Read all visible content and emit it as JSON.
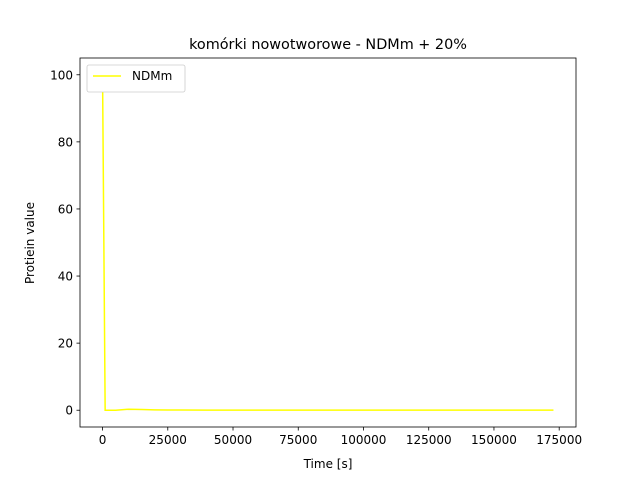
{
  "chart_data": {
    "type": "line",
    "title": "komórki nowotworowe - NDMm + 20%",
    "xlabel": "Time [s]",
    "ylabel": "Protiein value",
    "xlim": [
      -8640,
      181440
    ],
    "ylim": [
      -5,
      105
    ],
    "xticks": [
      0,
      25000,
      50000,
      75000,
      100000,
      125000,
      150000,
      175000
    ],
    "yticks": [
      0,
      20,
      40,
      60,
      80,
      100
    ],
    "grid": false,
    "legend_position": "upper-left",
    "series": [
      {
        "name": "NDMm",
        "color": "#ffff00",
        "x": [
          0,
          1000,
          5000,
          10000,
          15000,
          20000,
          25000,
          30000,
          40000,
          50000,
          75000,
          100000,
          125000,
          150000,
          172800
        ],
        "y": [
          100,
          0,
          0,
          0.3,
          0.2,
          0.1,
          0.05,
          0.05,
          0.03,
          0.03,
          0.02,
          0.02,
          0.02,
          0.02,
          0.02
        ]
      }
    ]
  }
}
